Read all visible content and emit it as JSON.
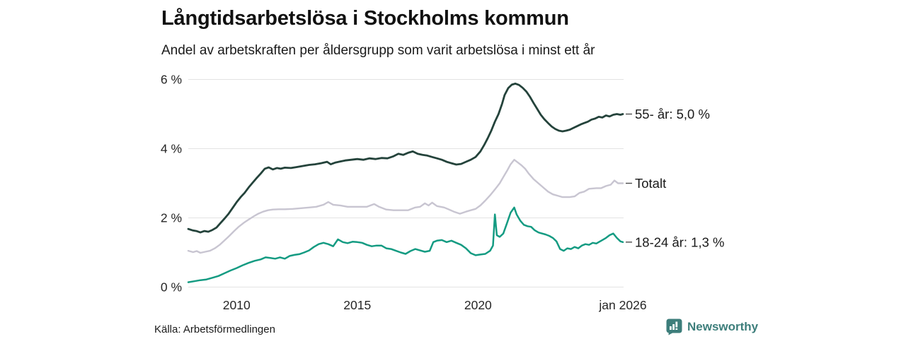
{
  "header": {
    "title": "Långtidsarbetslösa i Stockholms kommun",
    "subtitle": "Andel av arbetskraften per åldersgrupp som varit arbetslösa i minst ett år"
  },
  "footer": {
    "source": "Källa: Arbetsförmedlingen",
    "brand": "Newsworthy",
    "brand_color": "#3d7e7b"
  },
  "chart_data": {
    "type": "line",
    "title": "Långtidsarbetslösa i Stockholms kommun",
    "subtitle": "Andel av arbetskraften per åldersgrupp som varit arbetslösa i minst ett år",
    "unit": "%",
    "grid": "horizontal",
    "x_axis": {
      "range": [
        2008,
        2026
      ],
      "ticks": [
        {
          "label": "2010",
          "year": 2010
        },
        {
          "label": "2015",
          "year": 2015
        },
        {
          "label": "2020",
          "year": 2020
        },
        {
          "label": "jan 2026",
          "year": 2026
        }
      ]
    },
    "y_axis": {
      "range": [
        0,
        6
      ],
      "ticks": [
        {
          "label": "0 %",
          "value": 0
        },
        {
          "label": "2 %",
          "value": 2
        },
        {
          "label": "4 %",
          "value": 4
        },
        {
          "label": "6 %",
          "value": 6
        }
      ],
      "gridline_color": "#e3e3e3"
    },
    "series": [
      {
        "name": "55- år",
        "end_label": "55- år: 5,0 %",
        "end_value": 5.0,
        "color": "#24433b",
        "width": 2.8,
        "points": [
          [
            2008.0,
            1.68
          ],
          [
            2008.17,
            1.64
          ],
          [
            2008.33,
            1.62
          ],
          [
            2008.5,
            1.58
          ],
          [
            2008.67,
            1.62
          ],
          [
            2008.83,
            1.6
          ],
          [
            2009.0,
            1.65
          ],
          [
            2009.17,
            1.72
          ],
          [
            2009.33,
            1.85
          ],
          [
            2009.5,
            1.98
          ],
          [
            2009.67,
            2.12
          ],
          [
            2009.83,
            2.28
          ],
          [
            2010.0,
            2.45
          ],
          [
            2010.17,
            2.6
          ],
          [
            2010.33,
            2.72
          ],
          [
            2010.5,
            2.88
          ],
          [
            2010.67,
            3.02
          ],
          [
            2010.83,
            3.15
          ],
          [
            2011.0,
            3.28
          ],
          [
            2011.17,
            3.42
          ],
          [
            2011.33,
            3.46
          ],
          [
            2011.5,
            3.4
          ],
          [
            2011.67,
            3.44
          ],
          [
            2011.83,
            3.42
          ],
          [
            2012.0,
            3.45
          ],
          [
            2012.25,
            3.44
          ],
          [
            2012.5,
            3.47
          ],
          [
            2012.75,
            3.5
          ],
          [
            2013.0,
            3.53
          ],
          [
            2013.25,
            3.55
          ],
          [
            2013.5,
            3.58
          ],
          [
            2013.75,
            3.62
          ],
          [
            2013.9,
            3.55
          ],
          [
            2014.1,
            3.6
          ],
          [
            2014.3,
            3.63
          ],
          [
            2014.5,
            3.66
          ],
          [
            2014.75,
            3.68
          ],
          [
            2015.0,
            3.7
          ],
          [
            2015.25,
            3.68
          ],
          [
            2015.5,
            3.72
          ],
          [
            2015.75,
            3.7
          ],
          [
            2016.0,
            3.73
          ],
          [
            2016.25,
            3.72
          ],
          [
            2016.5,
            3.78
          ],
          [
            2016.7,
            3.85
          ],
          [
            2016.9,
            3.82
          ],
          [
            2017.1,
            3.88
          ],
          [
            2017.3,
            3.92
          ],
          [
            2017.5,
            3.85
          ],
          [
            2017.7,
            3.82
          ],
          [
            2017.9,
            3.8
          ],
          [
            2018.1,
            3.76
          ],
          [
            2018.3,
            3.72
          ],
          [
            2018.5,
            3.68
          ],
          [
            2018.7,
            3.62
          ],
          [
            2018.9,
            3.58
          ],
          [
            2019.1,
            3.54
          ],
          [
            2019.3,
            3.56
          ],
          [
            2019.5,
            3.62
          ],
          [
            2019.7,
            3.68
          ],
          [
            2019.9,
            3.76
          ],
          [
            2020.1,
            3.92
          ],
          [
            2020.25,
            4.1
          ],
          [
            2020.4,
            4.3
          ],
          [
            2020.55,
            4.52
          ],
          [
            2020.7,
            4.78
          ],
          [
            2020.85,
            5.0
          ],
          [
            2021.0,
            5.3
          ],
          [
            2021.1,
            5.55
          ],
          [
            2021.25,
            5.75
          ],
          [
            2021.4,
            5.85
          ],
          [
            2021.55,
            5.88
          ],
          [
            2021.7,
            5.84
          ],
          [
            2021.85,
            5.76
          ],
          [
            2022.0,
            5.65
          ],
          [
            2022.15,
            5.5
          ],
          [
            2022.3,
            5.32
          ],
          [
            2022.45,
            5.15
          ],
          [
            2022.6,
            4.98
          ],
          [
            2022.75,
            4.85
          ],
          [
            2022.9,
            4.74
          ],
          [
            2023.05,
            4.64
          ],
          [
            2023.2,
            4.57
          ],
          [
            2023.35,
            4.52
          ],
          [
            2023.5,
            4.5
          ],
          [
            2023.65,
            4.52
          ],
          [
            2023.8,
            4.55
          ],
          [
            2023.95,
            4.6
          ],
          [
            2024.1,
            4.65
          ],
          [
            2024.25,
            4.7
          ],
          [
            2024.4,
            4.74
          ],
          [
            2024.55,
            4.78
          ],
          [
            2024.7,
            4.84
          ],
          [
            2024.85,
            4.87
          ],
          [
            2025.0,
            4.92
          ],
          [
            2025.15,
            4.9
          ],
          [
            2025.3,
            4.96
          ],
          [
            2025.45,
            4.93
          ],
          [
            2025.6,
            4.98
          ],
          [
            2025.75,
            5.0
          ],
          [
            2025.9,
            4.98
          ],
          [
            2026.0,
            5.0
          ]
        ]
      },
      {
        "name": "Totalt",
        "end_label": "Totalt",
        "end_value": 3.0,
        "color": "#c8c5d1",
        "width": 2.4,
        "points": [
          [
            2008.0,
            1.05
          ],
          [
            2008.2,
            1.01
          ],
          [
            2008.35,
            1.04
          ],
          [
            2008.5,
            0.99
          ],
          [
            2008.7,
            1.02
          ],
          [
            2008.9,
            1.05
          ],
          [
            2009.1,
            1.12
          ],
          [
            2009.3,
            1.22
          ],
          [
            2009.5,
            1.35
          ],
          [
            2009.7,
            1.48
          ],
          [
            2009.9,
            1.62
          ],
          [
            2010.1,
            1.75
          ],
          [
            2010.3,
            1.86
          ],
          [
            2010.5,
            1.95
          ],
          [
            2010.7,
            2.04
          ],
          [
            2010.9,
            2.12
          ],
          [
            2011.1,
            2.18
          ],
          [
            2011.3,
            2.22
          ],
          [
            2011.5,
            2.24
          ],
          [
            2011.75,
            2.25
          ],
          [
            2012.0,
            2.25
          ],
          [
            2012.33,
            2.26
          ],
          [
            2012.67,
            2.28
          ],
          [
            2013.0,
            2.3
          ],
          [
            2013.3,
            2.32
          ],
          [
            2013.6,
            2.38
          ],
          [
            2013.8,
            2.46
          ],
          [
            2014.0,
            2.38
          ],
          [
            2014.3,
            2.36
          ],
          [
            2014.6,
            2.32
          ],
          [
            2015.0,
            2.32
          ],
          [
            2015.4,
            2.32
          ],
          [
            2015.7,
            2.4
          ],
          [
            2015.9,
            2.32
          ],
          [
            2016.2,
            2.24
          ],
          [
            2016.5,
            2.22
          ],
          [
            2016.8,
            2.22
          ],
          [
            2017.1,
            2.22
          ],
          [
            2017.4,
            2.3
          ],
          [
            2017.6,
            2.32
          ],
          [
            2017.8,
            2.42
          ],
          [
            2017.95,
            2.36
          ],
          [
            2018.1,
            2.44
          ],
          [
            2018.3,
            2.34
          ],
          [
            2018.6,
            2.3
          ],
          [
            2018.8,
            2.24
          ],
          [
            2019.0,
            2.18
          ],
          [
            2019.25,
            2.12
          ],
          [
            2019.5,
            2.18
          ],
          [
            2019.7,
            2.22
          ],
          [
            2019.9,
            2.26
          ],
          [
            2020.1,
            2.36
          ],
          [
            2020.3,
            2.5
          ],
          [
            2020.5,
            2.65
          ],
          [
            2020.7,
            2.82
          ],
          [
            2020.9,
            3.0
          ],
          [
            2021.05,
            3.18
          ],
          [
            2021.2,
            3.36
          ],
          [
            2021.35,
            3.55
          ],
          [
            2021.5,
            3.68
          ],
          [
            2021.65,
            3.6
          ],
          [
            2021.8,
            3.52
          ],
          [
            2021.95,
            3.42
          ],
          [
            2022.1,
            3.28
          ],
          [
            2022.3,
            3.12
          ],
          [
            2022.5,
            3.0
          ],
          [
            2022.7,
            2.88
          ],
          [
            2022.9,
            2.76
          ],
          [
            2023.1,
            2.68
          ],
          [
            2023.3,
            2.64
          ],
          [
            2023.5,
            2.6
          ],
          [
            2023.8,
            2.6
          ],
          [
            2024.0,
            2.62
          ],
          [
            2024.2,
            2.72
          ],
          [
            2024.4,
            2.76
          ],
          [
            2024.6,
            2.84
          ],
          [
            2024.9,
            2.86
          ],
          [
            2025.1,
            2.86
          ],
          [
            2025.3,
            2.92
          ],
          [
            2025.5,
            2.96
          ],
          [
            2025.65,
            3.08
          ],
          [
            2025.8,
            3.0
          ],
          [
            2026.0,
            3.0
          ]
        ]
      },
      {
        "name": "18-24 år",
        "end_label": "18-24 år: 1,3 %",
        "end_value": 1.3,
        "color": "#149b82",
        "width": 2.5,
        "points": [
          [
            2008.0,
            0.14
          ],
          [
            2008.25,
            0.17
          ],
          [
            2008.5,
            0.2
          ],
          [
            2008.75,
            0.22
          ],
          [
            2009.0,
            0.27
          ],
          [
            2009.25,
            0.32
          ],
          [
            2009.5,
            0.4
          ],
          [
            2009.75,
            0.48
          ],
          [
            2010.0,
            0.55
          ],
          [
            2010.25,
            0.63
          ],
          [
            2010.5,
            0.7
          ],
          [
            2010.75,
            0.76
          ],
          [
            2011.0,
            0.8
          ],
          [
            2011.2,
            0.86
          ],
          [
            2011.4,
            0.84
          ],
          [
            2011.6,
            0.82
          ],
          [
            2011.8,
            0.86
          ],
          [
            2012.0,
            0.82
          ],
          [
            2012.2,
            0.9
          ],
          [
            2012.4,
            0.93
          ],
          [
            2012.6,
            0.95
          ],
          [
            2012.8,
            1.0
          ],
          [
            2013.0,
            1.06
          ],
          [
            2013.2,
            1.16
          ],
          [
            2013.4,
            1.24
          ],
          [
            2013.6,
            1.28
          ],
          [
            2013.8,
            1.24
          ],
          [
            2014.0,
            1.18
          ],
          [
            2014.2,
            1.38
          ],
          [
            2014.4,
            1.3
          ],
          [
            2014.6,
            1.27
          ],
          [
            2014.8,
            1.31
          ],
          [
            2015.0,
            1.3
          ],
          [
            2015.2,
            1.28
          ],
          [
            2015.4,
            1.22
          ],
          [
            2015.6,
            1.18
          ],
          [
            2015.8,
            1.2
          ],
          [
            2016.0,
            1.2
          ],
          [
            2016.2,
            1.12
          ],
          [
            2016.4,
            1.1
          ],
          [
            2016.6,
            1.05
          ],
          [
            2016.8,
            1.0
          ],
          [
            2017.0,
            0.96
          ],
          [
            2017.2,
            1.04
          ],
          [
            2017.4,
            1.1
          ],
          [
            2017.6,
            1.06
          ],
          [
            2017.8,
            1.02
          ],
          [
            2018.0,
            1.05
          ],
          [
            2018.15,
            1.3
          ],
          [
            2018.3,
            1.34
          ],
          [
            2018.5,
            1.36
          ],
          [
            2018.7,
            1.3
          ],
          [
            2018.9,
            1.34
          ],
          [
            2019.1,
            1.28
          ],
          [
            2019.3,
            1.22
          ],
          [
            2019.5,
            1.12
          ],
          [
            2019.7,
            0.98
          ],
          [
            2019.9,
            0.92
          ],
          [
            2020.1,
            0.94
          ],
          [
            2020.3,
            0.96
          ],
          [
            2020.5,
            1.05
          ],
          [
            2020.62,
            1.2
          ],
          [
            2020.7,
            2.1
          ],
          [
            2020.78,
            1.5
          ],
          [
            2020.9,
            1.45
          ],
          [
            2021.05,
            1.55
          ],
          [
            2021.2,
            1.85
          ],
          [
            2021.35,
            2.15
          ],
          [
            2021.5,
            2.3
          ],
          [
            2021.6,
            2.1
          ],
          [
            2021.75,
            1.92
          ],
          [
            2021.9,
            1.8
          ],
          [
            2022.05,
            1.76
          ],
          [
            2022.2,
            1.74
          ],
          [
            2022.35,
            1.64
          ],
          [
            2022.5,
            1.58
          ],
          [
            2022.65,
            1.55
          ],
          [
            2022.8,
            1.52
          ],
          [
            2022.95,
            1.48
          ],
          [
            2023.1,
            1.42
          ],
          [
            2023.25,
            1.32
          ],
          [
            2023.4,
            1.1
          ],
          [
            2023.55,
            1.05
          ],
          [
            2023.7,
            1.12
          ],
          [
            2023.85,
            1.1
          ],
          [
            2024.0,
            1.16
          ],
          [
            2024.15,
            1.12
          ],
          [
            2024.3,
            1.2
          ],
          [
            2024.45,
            1.24
          ],
          [
            2024.6,
            1.22
          ],
          [
            2024.75,
            1.28
          ],
          [
            2024.9,
            1.26
          ],
          [
            2025.0,
            1.3
          ],
          [
            2025.15,
            1.36
          ],
          [
            2025.3,
            1.42
          ],
          [
            2025.45,
            1.5
          ],
          [
            2025.6,
            1.55
          ],
          [
            2025.75,
            1.42
          ],
          [
            2025.9,
            1.32
          ],
          [
            2026.0,
            1.3
          ]
        ]
      }
    ]
  }
}
